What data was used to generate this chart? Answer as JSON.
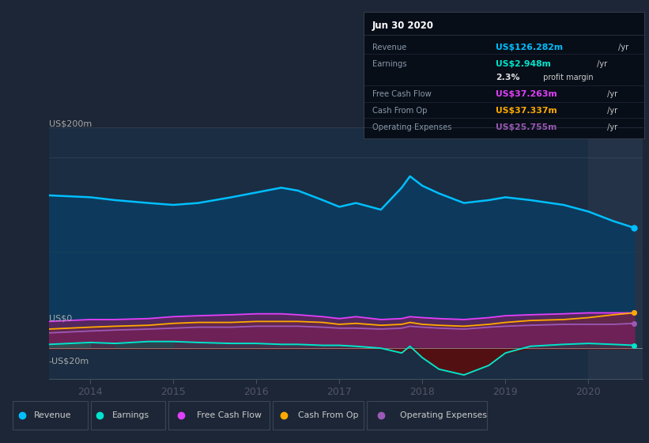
{
  "bg_color": "#1c2636",
  "plot_bg_color": "#1a2d42",
  "header_bg": "#111827",
  "title": "Jun 30 2020",
  "ylabel_top": "US$200m",
  "ylabel_zero": "US$0",
  "ylabel_neg": "-US$20m",
  "years": [
    2013.5,
    2014.0,
    2014.3,
    2014.7,
    2015.0,
    2015.3,
    2015.7,
    2016.0,
    2016.3,
    2016.5,
    2016.8,
    2017.0,
    2017.2,
    2017.5,
    2017.75,
    2017.85,
    2018.0,
    2018.2,
    2018.5,
    2018.8,
    2019.0,
    2019.3,
    2019.7,
    2020.0,
    2020.3,
    2020.55
  ],
  "revenue": [
    160,
    158,
    155,
    152,
    150,
    152,
    158,
    163,
    168,
    165,
    155,
    148,
    152,
    145,
    168,
    180,
    170,
    162,
    152,
    155,
    158,
    155,
    150,
    143,
    133,
    126
  ],
  "earnings": [
    4,
    6,
    5,
    7,
    7,
    6,
    5,
    5,
    4,
    4,
    3,
    3,
    2,
    0,
    -5,
    2,
    -10,
    -22,
    -28,
    -18,
    -5,
    2,
    4,
    5,
    4,
    3
  ],
  "free_cash_flow": [
    28,
    30,
    30,
    31,
    33,
    34,
    35,
    36,
    36,
    35,
    33,
    31,
    33,
    30,
    31,
    33,
    32,
    31,
    30,
    32,
    34,
    35,
    36,
    37,
    37,
    37
  ],
  "cash_from_op": [
    20,
    22,
    23,
    24,
    26,
    27,
    27,
    28,
    28,
    28,
    27,
    25,
    26,
    24,
    25,
    27,
    25,
    24,
    23,
    25,
    27,
    29,
    30,
    32,
    35,
    37
  ],
  "operating_expenses": [
    16,
    18,
    19,
    20,
    21,
    22,
    22,
    23,
    23,
    23,
    22,
    21,
    21,
    20,
    21,
    23,
    22,
    21,
    20,
    22,
    23,
    24,
    25,
    25,
    25,
    26
  ],
  "revenue_color": "#00bfff",
  "earnings_color": "#00e5cc",
  "free_cash_flow_color": "#e040fb",
  "cash_from_op_color": "#ffaa00",
  "operating_expenses_color": "#9b59b6",
  "revenue_fill": "#0d3a5c",
  "highlight_x_start": 2020.0,
  "highlight_x_end": 2020.65,
  "xlim_min": 2013.5,
  "xlim_max": 2020.65,
  "ylim_min": -32,
  "ylim_max": 230,
  "y_200_val": 200,
  "y_0_val": 0,
  "y_neg20_val": -20,
  "info_box": {
    "title": "Jun 30 2020",
    "rows": [
      {
        "label": "Revenue",
        "value": "US$126.282m",
        "suffix": " /yr",
        "color": "#00bfff"
      },
      {
        "label": "Earnings",
        "value": "US$2.948m",
        "suffix": " /yr",
        "color": "#00e5cc"
      },
      {
        "label": "",
        "value": "2.3%",
        "suffix": " profit margin",
        "color": "#e0e0e0"
      },
      {
        "label": "Free Cash Flow",
        "value": "US$37.263m",
        "suffix": " /yr",
        "color": "#e040fb"
      },
      {
        "label": "Cash From Op",
        "value": "US$37.337m",
        "suffix": " /yr",
        "color": "#ffaa00"
      },
      {
        "label": "Operating Expenses",
        "value": "US$25.755m",
        "suffix": " /yr",
        "color": "#9b59b6"
      }
    ]
  },
  "legend_items": [
    {
      "label": "Revenue",
      "color": "#00bfff"
    },
    {
      "label": "Earnings",
      "color": "#00e5cc"
    },
    {
      "label": "Free Cash Flow",
      "color": "#e040fb"
    },
    {
      "label": "Cash From Op",
      "color": "#ffaa00"
    },
    {
      "label": "Operating Expenses",
      "color": "#9b59b6"
    }
  ],
  "xticks": [
    2014,
    2015,
    2016,
    2017,
    2018,
    2019,
    2020
  ]
}
